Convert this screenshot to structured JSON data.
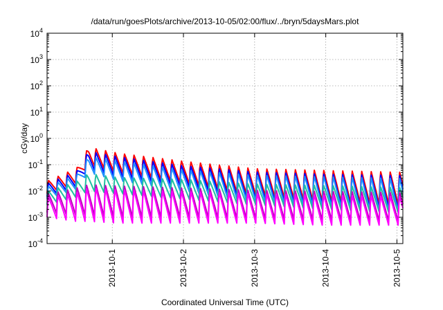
{
  "chart_data": {
    "type": "line",
    "title": "/data/run/goesPlots/archive/2013-10-05/02:00/flux/../bryn/5daysMars.plot",
    "xlabel": "Coordinated Universal Time (UTC)",
    "ylabel": "cGy/day",
    "ylog": true,
    "ylim": [
      0.0001,
      10000
    ],
    "xlim": [
      "2013-09-30T02:00",
      "2013-10-05T02:00"
    ],
    "grid": true,
    "legend": "none",
    "y_ticks": [
      {
        "base": "10",
        "exp": "-4"
      },
      {
        "base": "10",
        "exp": "-3"
      },
      {
        "base": "10",
        "exp": "-2"
      },
      {
        "base": "10",
        "exp": "-1"
      },
      {
        "base": "10",
        "exp": "0"
      },
      {
        "base": "10",
        "exp": "1"
      },
      {
        "base": "10",
        "exp": "2"
      },
      {
        "base": "10",
        "exp": "3"
      },
      {
        "base": "10",
        "exp": "4"
      }
    ],
    "x_ticks": [
      "2013-10-1",
      "2013-10-2",
      "2013-10-3",
      "2013-10-4",
      "2013-10-5"
    ],
    "series": [
      {
        "color": "#ff0000",
        "envelope": {
          "x": [
            "2013-09-30T02:00",
            "2013-09-30T12:00",
            "2013-09-30T16:00",
            "2013-10-01T02:00",
            "2013-10-02T00:00",
            "2013-10-03T00:00",
            "2013-10-04T00:00",
            "2013-10-05T02:00"
          ],
          "peak": [
            0.025,
            0.08,
            0.5,
            0.3,
            0.15,
            0.08,
            0.07,
            0.06
          ],
          "trough": [
            0.008,
            0.02,
            0.1,
            0.05,
            0.02,
            0.007,
            0.004,
            0.003
          ]
        }
      },
      {
        "color": "#0000ff",
        "envelope": {
          "x": [
            "2013-09-30T02:00",
            "2013-09-30T12:00",
            "2013-09-30T16:00",
            "2013-10-01T02:00",
            "2013-10-02T00:00",
            "2013-10-03T00:00",
            "2013-10-04T00:00",
            "2013-10-05T02:00"
          ],
          "peak": [
            0.02,
            0.06,
            0.35,
            0.22,
            0.1,
            0.06,
            0.05,
            0.045
          ],
          "trough": [
            0.006,
            0.015,
            0.07,
            0.035,
            0.015,
            0.005,
            0.003,
            0.002
          ]
        }
      },
      {
        "color": "#1e90ff",
        "envelope": {
          "x": [
            "2013-09-30T02:00",
            "2013-09-30T12:00",
            "2013-09-30T16:00",
            "2013-10-01T02:00",
            "2013-10-02T00:00",
            "2013-10-03T00:00",
            "2013-10-04T00:00",
            "2013-10-05T02:00"
          ],
          "peak": [
            0.015,
            0.045,
            0.22,
            0.15,
            0.07,
            0.045,
            0.04,
            0.035
          ],
          "trough": [
            0.005,
            0.012,
            0.05,
            0.025,
            0.01,
            0.004,
            0.0025,
            0.0015
          ]
        }
      },
      {
        "color": "#20c0a0",
        "envelope": {
          "x": [
            "2013-09-30T02:00",
            "2013-09-30T12:00",
            "2013-09-30T16:00",
            "2013-10-01T02:00",
            "2013-10-02T00:00",
            "2013-10-03T00:00",
            "2013-10-04T00:00",
            "2013-10-05T02:00"
          ],
          "peak": [
            0.01,
            0.025,
            0.05,
            0.035,
            0.03,
            0.02,
            0.018,
            0.015
          ],
          "trough": [
            0.003,
            0.006,
            0.01,
            0.008,
            0.005,
            0.003,
            0.002,
            0.0015
          ]
        }
      },
      {
        "color": "#c000c0",
        "envelope": {
          "x": [
            "2013-09-30T02:00",
            "2013-09-30T12:00",
            "2013-09-30T16:00",
            "2013-10-01T02:00",
            "2013-10-02T00:00",
            "2013-10-03T00:00",
            "2013-10-04T00:00",
            "2013-10-05T02:00"
          ],
          "peak": [
            0.008,
            0.015,
            0.02,
            0.018,
            0.015,
            0.012,
            0.011,
            0.01
          ],
          "trough": [
            0.0015,
            0.0012,
            0.0012,
            0.001,
            0.001,
            0.0009,
            0.0008,
            0.0007
          ]
        }
      },
      {
        "color": "#ff00ff",
        "envelope": {
          "x": [
            "2013-09-30T02:00",
            "2013-09-30T12:00",
            "2013-09-30T16:00",
            "2013-10-01T02:00",
            "2013-10-02T00:00",
            "2013-10-03T00:00",
            "2013-10-04T00:00",
            "2013-10-05T02:00"
          ],
          "peak": [
            0.006,
            0.01,
            0.015,
            0.013,
            0.011,
            0.009,
            0.008,
            0.007
          ],
          "trough": [
            0.001,
            0.0007,
            0.0007,
            0.0006,
            0.0006,
            0.0006,
            0.0005,
            0.0005
          ]
        }
      }
    ],
    "oscillation_period_hours": 3.2
  }
}
